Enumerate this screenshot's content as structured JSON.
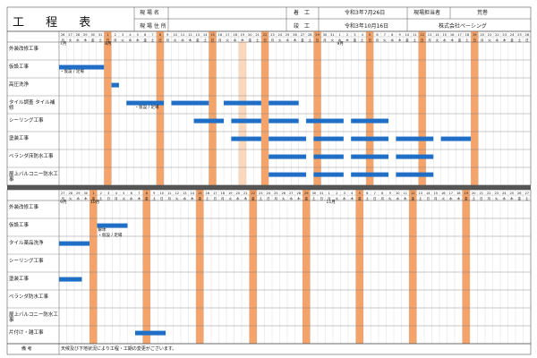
{
  "header": {
    "title": "工 程 表",
    "labels": {
      "site_name": "現 場 名",
      "site_address": "現 場 住 所",
      "start": "着　工",
      "finish": "竣　工",
      "manager": "現場担当者",
      "manager_name": "荒巻",
      "start_date": "令和3年7月26日",
      "finish_date": "令和3年10月16日",
      "company": "株式会社ペーシング"
    }
  },
  "weekday_pattern": [
    "月",
    "火",
    "水",
    "木",
    "金",
    "土",
    "日"
  ],
  "accent_color": "#f4a46b",
  "accent_light": "#fbd7bb",
  "bar_color": "#1f6fc7",
  "sections": [
    {
      "name": "top",
      "start_day": 26,
      "days": [
        26,
        27,
        28,
        29,
        30,
        31,
        1,
        2,
        3,
        4,
        5,
        6,
        7,
        8,
        9,
        10,
        11,
        12,
        13,
        14,
        15,
        16,
        17,
        18,
        19,
        20,
        21,
        22,
        23,
        24,
        25,
        26,
        27,
        28,
        29,
        30,
        31,
        1,
        2,
        3,
        4,
        5,
        6,
        7,
        8,
        9,
        10,
        11,
        12,
        13,
        14,
        15,
        16,
        17,
        18,
        19,
        20,
        21,
        22,
        23,
        24,
        25,
        26
      ],
      "month_labels": [
        {
          "text": "7月",
          "col": 0
        },
        {
          "text": "8月",
          "col": 6
        },
        {
          "text": "9月",
          "col": 37
        }
      ],
      "holiday_cols": [
        6,
        13,
        20,
        27,
        34,
        41,
        48,
        55
      ],
      "light_cols": [
        24,
        48
      ],
      "rows": [
        {
          "label": "外装改修工事",
          "bars": [],
          "notes": []
        },
        {
          "label": "仮設工事",
          "bars": [
            [
              0,
              6
            ]
          ],
          "notes": [
            {
              "text": "・仮設 / 足場",
              "col": 0
            }
          ]
        },
        {
          "label": "高圧洗浄",
          "bars": [
            [
              7,
              8
            ]
          ],
          "notes": []
        },
        {
          "label": "タイル調査 タイル補修",
          "bars": [
            [
              9,
              14
            ],
            [
              15,
              20
            ],
            [
              22,
              27
            ],
            [
              28,
              32
            ]
          ],
          "notes": [
            {
              "text": "・仮設 / 足場",
              "col": 10
            }
          ]
        },
        {
          "label": "シーリング工事",
          "bars": [
            [
              18,
              22
            ],
            [
              23,
              27
            ],
            [
              28,
              32
            ],
            [
              33,
              38
            ],
            [
              39,
              44
            ]
          ],
          "notes": []
        },
        {
          "label": "塗装工事",
          "bars": [
            [
              23,
              27
            ],
            [
              28,
              33
            ],
            [
              34,
              38
            ],
            [
              39,
              44
            ],
            [
              45,
              50
            ],
            [
              51,
              55
            ]
          ],
          "notes": []
        },
        {
          "label": "ベランダ床防水工事",
          "bars": [
            [
              28,
              33
            ],
            [
              34,
              38
            ],
            [
              39,
              44
            ],
            [
              45,
              50
            ]
          ],
          "notes": []
        },
        {
          "label": "屋上バルコニー防水工事",
          "bars": [
            [
              28,
              33
            ],
            [
              34,
              38
            ],
            [
              39,
              44
            ],
            [
              45,
              50
            ]
          ],
          "notes": []
        }
      ]
    },
    {
      "name": "bottom",
      "start_day": 27,
      "days": [
        27,
        28,
        29,
        30,
        1,
        2,
        3,
        4,
        5,
        6,
        7,
        8,
        9,
        10,
        11,
        12,
        13,
        14,
        15,
        16,
        17,
        18,
        19,
        20,
        21,
        22,
        23,
        24,
        25,
        26,
        27,
        28,
        29,
        30,
        31,
        1,
        2,
        3,
        4,
        5,
        6,
        7,
        8,
        9,
        10,
        11,
        12,
        13,
        14,
        15,
        16,
        17,
        18,
        19,
        20,
        21,
        22,
        23,
        24,
        25,
        26,
        27
      ],
      "month_labels": [
        {
          "text": "9月",
          "col": 0
        },
        {
          "text": "10月",
          "col": 4
        },
        {
          "text": "11月",
          "col": 35
        }
      ],
      "holiday_cols": [
        4,
        11,
        18,
        25,
        32,
        39,
        46,
        53
      ],
      "light_cols": [],
      "rows": [
        {
          "label": "外装改修工事",
          "bars": [],
          "notes": []
        },
        {
          "label": "仮設工事",
          "bars": [
            [
              5,
              9
            ]
          ],
          "notes": [
            {
              "text": "解体",
              "col": 5
            },
            {
              "text": "・仮設 / 足場",
              "col": 5
            }
          ]
        },
        {
          "label": "タイル薬品洗浄",
          "bars": [
            [
              0,
              4
            ]
          ],
          "notes": []
        },
        {
          "label": "シーリング工事",
          "bars": [],
          "notes": []
        },
        {
          "label": "塗装工事",
          "bars": [
            [
              0,
              3
            ]
          ],
          "notes": []
        },
        {
          "label": "ベランダ防水工事",
          "bars": [],
          "notes": []
        },
        {
          "label": "屋上バルコニー防水工事",
          "bars": [],
          "notes": []
        },
        {
          "label": "片付け・雑工事",
          "bars": [
            [
              10,
              14
            ]
          ],
          "notes": []
        }
      ]
    }
  ],
  "footer": {
    "label": "備 考",
    "text": "天候及び下地状況により工程・工期の変更がございます。"
  }
}
